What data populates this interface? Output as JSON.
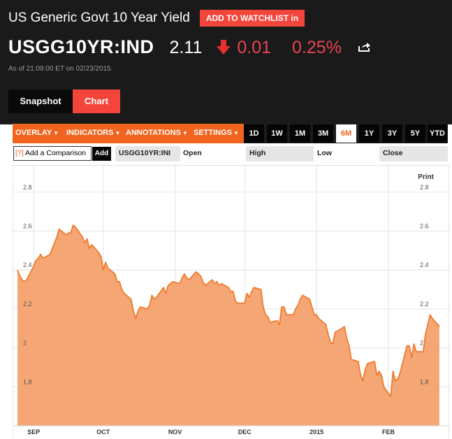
{
  "header": {
    "title": "US Generic Govt 10 Year Yield",
    "watchlist_label": "ADD TO WATCHLIST in",
    "ticker": "USGG10YR:IND",
    "price": "2.11",
    "change": "0.01",
    "change_pct": "0.25%",
    "as_of": "As of 21:09:00 ET on 02/23/2015."
  },
  "tabs": [
    {
      "label": "Snapshot",
      "active": false
    },
    {
      "label": "Chart",
      "active": true
    }
  ],
  "toolbar": {
    "menus": [
      "OVERLAY",
      "INDICATORS",
      "ANNOTATIONS",
      "SETTINGS"
    ],
    "ranges": [
      "1D",
      "1W",
      "1M",
      "3M",
      "6M",
      "1Y",
      "3Y",
      "5Y",
      "YTD"
    ],
    "active_range": "6M"
  },
  "compare": {
    "placeholder": "Add a Comparison",
    "q_mark": "[?]",
    "add_label": "Add",
    "symbol": "USGG10YR:INI",
    "open_label": "Open",
    "high_label": "High",
    "low_label": "Low",
    "close_label": "Close"
  },
  "print_label": "Print",
  "colors": {
    "accent": "#f0641e",
    "red": "#f3453a",
    "down": "#e94452",
    "area_fill": "#f5a675",
    "line": "#f07a2b"
  },
  "chart_data": {
    "type": "area",
    "ylim": [
      1.6,
      2.9
    ],
    "yticks": [
      "2.8",
      "2.6",
      "2.4",
      "2.2",
      "2",
      "1.8"
    ],
    "ytick_values": [
      2.8,
      2.6,
      2.4,
      2.2,
      2.0,
      1.8
    ],
    "xticks": [
      "SEP",
      "OCT",
      "NOV",
      "DEC",
      "2015",
      "FEB"
    ],
    "xtick_dates": [
      "2014-09-01",
      "2014-10-01",
      "2014-11-01",
      "2014-12-01",
      "2015-01-01",
      "2015-02-01"
    ],
    "series": [
      {
        "x": [
          "2014-08-25",
          "2014-08-26",
          "2014-08-27",
          "2014-08-28",
          "2014-08-29",
          "2014-09-01",
          "2014-09-02",
          "2014-09-03",
          "2014-09-04",
          "2014-09-05",
          "2014-09-08",
          "2014-09-09",
          "2014-09-10",
          "2014-09-11",
          "2014-09-12",
          "2014-09-15",
          "2014-09-16",
          "2014-09-17",
          "2014-09-18",
          "2014-09-19",
          "2014-09-22",
          "2014-09-23",
          "2014-09-24",
          "2014-09-25",
          "2014-09-26",
          "2014-09-29",
          "2014-09-30",
          "2014-10-01",
          "2014-10-02",
          "2014-10-03",
          "2014-10-06",
          "2014-10-07",
          "2014-10-08",
          "2014-10-09",
          "2014-10-10",
          "2014-10-13",
          "2014-10-14",
          "2014-10-15",
          "2014-10-16",
          "2014-10-17",
          "2014-10-20",
          "2014-10-21",
          "2014-10-22",
          "2014-10-23",
          "2014-10-24",
          "2014-10-27",
          "2014-10-28",
          "2014-10-29",
          "2014-10-30",
          "2014-10-31",
          "2014-11-03",
          "2014-11-04",
          "2014-11-05",
          "2014-11-06",
          "2014-11-07",
          "2014-11-10",
          "2014-11-11",
          "2014-11-12",
          "2014-11-13",
          "2014-11-14",
          "2014-11-17",
          "2014-11-18",
          "2014-11-19",
          "2014-11-20",
          "2014-11-21",
          "2014-11-24",
          "2014-11-25",
          "2014-11-26",
          "2014-11-27",
          "2014-11-28",
          "2014-12-01",
          "2014-12-02",
          "2014-12-03",
          "2014-12-04",
          "2014-12-05",
          "2014-12-08",
          "2014-12-09",
          "2014-12-10",
          "2014-12-11",
          "2014-12-12",
          "2014-12-15",
          "2014-12-16",
          "2014-12-17",
          "2014-12-18",
          "2014-12-19",
          "2014-12-22",
          "2014-12-23",
          "2014-12-24",
          "2014-12-25",
          "2014-12-26",
          "2014-12-29",
          "2014-12-30",
          "2014-12-31",
          "2015-01-01",
          "2015-01-02",
          "2015-01-05",
          "2015-01-06",
          "2015-01-07",
          "2015-01-08",
          "2015-01-09",
          "2015-01-12",
          "2015-01-13",
          "2015-01-14",
          "2015-01-15",
          "2015-01-16",
          "2015-01-19",
          "2015-01-20",
          "2015-01-21",
          "2015-01-22",
          "2015-01-23",
          "2015-01-26",
          "2015-01-27",
          "2015-01-28",
          "2015-01-29",
          "2015-01-30",
          "2015-02-02",
          "2015-02-03",
          "2015-02-04",
          "2015-02-05",
          "2015-02-06",
          "2015-02-09",
          "2015-02-10",
          "2015-02-11",
          "2015-02-12",
          "2015-02-13",
          "2015-02-16",
          "2015-02-17",
          "2015-02-18",
          "2015-02-19",
          "2015-02-20",
          "2015-02-23"
        ],
        "y": [
          2.4,
          2.37,
          2.35,
          2.34,
          2.35,
          2.42,
          2.45,
          2.46,
          2.48,
          2.46,
          2.48,
          2.51,
          2.54,
          2.57,
          2.61,
          2.58,
          2.59,
          2.59,
          2.63,
          2.62,
          2.57,
          2.54,
          2.56,
          2.51,
          2.53,
          2.49,
          2.47,
          2.4,
          2.44,
          2.41,
          2.38,
          2.34,
          2.34,
          2.3,
          2.28,
          2.25,
          2.19,
          2.15,
          2.19,
          2.21,
          2.2,
          2.22,
          2.27,
          2.25,
          2.26,
          2.31,
          2.28,
          2.32,
          2.33,
          2.34,
          2.33,
          2.36,
          2.38,
          2.36,
          2.35,
          2.39,
          2.38,
          2.37,
          2.34,
          2.32,
          2.35,
          2.33,
          2.34,
          2.32,
          2.33,
          2.31,
          2.29,
          2.29,
          2.24,
          2.23,
          2.23,
          2.28,
          2.26,
          2.29,
          2.31,
          2.3,
          2.21,
          2.17,
          2.16,
          2.13,
          2.14,
          2.12,
          2.21,
          2.21,
          2.17,
          2.17,
          2.2,
          2.22,
          2.25,
          2.27,
          2.25,
          2.21,
          2.17,
          2.17,
          2.15,
          2.12,
          2.07,
          2.03,
          2.02,
          2.08,
          2.1,
          2.11,
          2.05,
          2.01,
          1.94,
          1.93,
          1.86,
          1.83,
          1.89,
          1.92,
          1.93,
          1.86,
          1.88,
          1.86,
          1.8,
          1.75,
          1.88,
          1.83,
          1.84,
          1.87,
          2.01,
          2.01,
          1.95,
          2.02,
          1.98,
          1.98,
          2.07,
          2.12,
          2.17,
          2.15,
          2.11
        ]
      }
    ]
  }
}
